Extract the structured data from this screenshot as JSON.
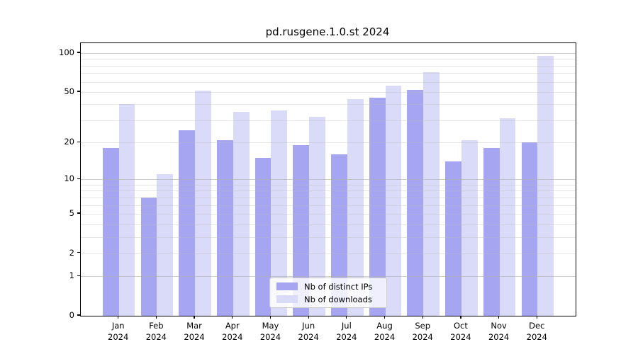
{
  "chart_data": {
    "type": "bar",
    "title": "pd.rusgene.1.0.st 2024",
    "categories": [
      "Jan",
      "Feb",
      "Mar",
      "Apr",
      "May",
      "Jun",
      "Jul",
      "Aug",
      "Sep",
      "Oct",
      "Nov",
      "Dec"
    ],
    "category_year": "2024",
    "series": [
      {
        "name": "Nb of distinct IPs",
        "slug": "distinct-ips",
        "color": "#a5a5f2",
        "values": [
          18,
          7,
          25,
          21,
          15,
          19,
          16,
          45,
          52,
          14,
          18,
          20
        ]
      },
      {
        "name": "Nb of downloads",
        "slug": "downloads",
        "color": "#dadaf9",
        "values": [
          40,
          11,
          51,
          35,
          36,
          32,
          44,
          56,
          71,
          21,
          31,
          95
        ]
      }
    ],
    "yscale": "log1p",
    "ylim": [
      0,
      119
    ],
    "yticks": [
      100,
      50,
      20,
      10,
      5,
      2,
      1,
      0
    ],
    "major_gridlines": [
      1,
      10,
      100
    ],
    "minor_gridlines": [
      2,
      3,
      4,
      5,
      6,
      7,
      8,
      9,
      20,
      30,
      40,
      50,
      60,
      70,
      80,
      90
    ],
    "grid": true,
    "legend_position": "lower center",
    "colors": {
      "axis": "#000000",
      "background": "#ffffff",
      "bar_distinct_ips": "#a5a5f2",
      "bar_downloads": "#dadaf9"
    }
  }
}
